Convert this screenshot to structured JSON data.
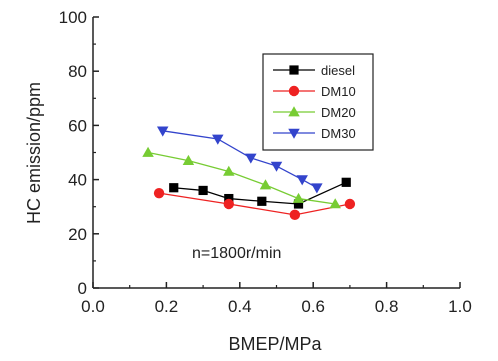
{
  "chart_data": {
    "type": "line",
    "xlabel": "BMEP/MPa",
    "ylabel": "HC emission/ppm",
    "xlim": [
      0.0,
      1.0
    ],
    "ylim": [
      0,
      100
    ],
    "x_ticks": [
      "0.0",
      "0.2",
      "0.4",
      "0.6",
      "0.8",
      "1.0"
    ],
    "y_ticks": [
      "0",
      "20",
      "40",
      "60",
      "80",
      "100"
    ],
    "legend_position": "top-right",
    "annotation": "n=1800r/min",
    "series": [
      {
        "name": "diesel",
        "color": "#000000",
        "marker": "square",
        "x": [
          0.22,
          0.3,
          0.37,
          0.46,
          0.56,
          0.69
        ],
        "y": [
          37,
          36,
          33,
          32,
          31,
          39
        ]
      },
      {
        "name": "DM10",
        "color": "#ee2222",
        "marker": "circle",
        "x": [
          0.18,
          0.37,
          0.55,
          0.7
        ],
        "y": [
          35,
          31,
          27,
          31
        ]
      },
      {
        "name": "DM20",
        "color": "#77cc33",
        "marker": "triangle-up",
        "x": [
          0.15,
          0.26,
          0.37,
          0.47,
          0.56,
          0.66
        ],
        "y": [
          50,
          47,
          43,
          38,
          33,
          31
        ]
      },
      {
        "name": "DM30",
        "color": "#3344cc",
        "marker": "triangle-down",
        "x": [
          0.19,
          0.34,
          0.43,
          0.5,
          0.57,
          0.61
        ],
        "y": [
          58,
          55,
          48,
          45,
          40,
          37
        ]
      }
    ]
  }
}
